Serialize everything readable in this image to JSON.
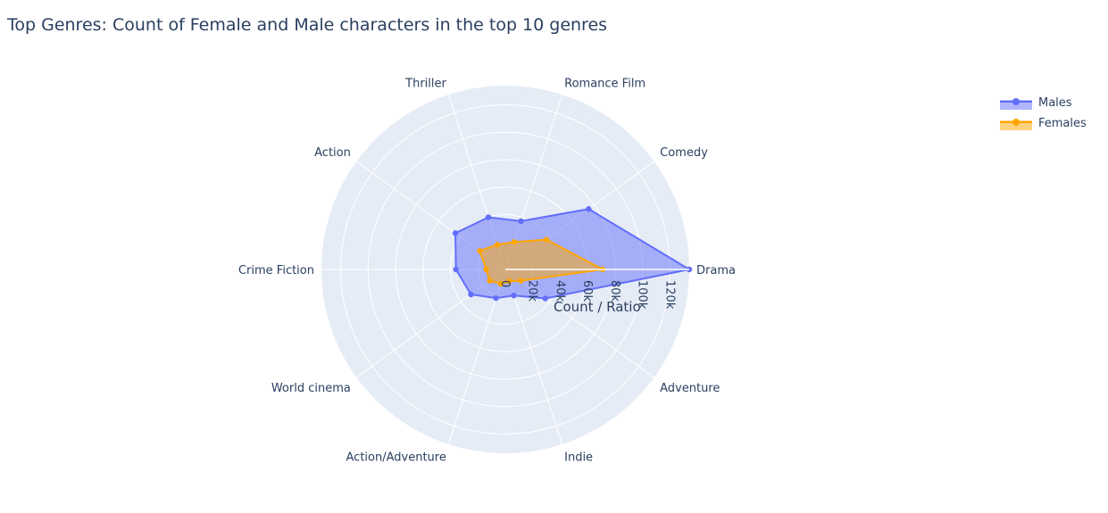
{
  "title": "Top Genres: Count of Female and Male characters in the top 10 genres",
  "colors": {
    "background": "#e5ecf6",
    "grid": "#ffffff",
    "males_line": "#636efa",
    "males_fill": "rgba(99,110,250,0.5)",
    "females_line": "#ffa500",
    "females_fill": "rgba(255,165,0,0.5)"
  },
  "chart_data": {
    "type": "radar",
    "categories": [
      "Drama",
      "Comedy",
      "Romance Film",
      "Thriller",
      "Action",
      "Crime Fiction",
      "World cinema",
      "Action/Adventure",
      "Indie",
      "Adventure"
    ],
    "series": [
      {
        "name": "Males",
        "values": [
          134000,
          75000,
          37000,
          40000,
          45000,
          36000,
          31000,
          22000,
          20000,
          36000
        ]
      },
      {
        "name": "Females",
        "values": [
          71000,
          37000,
          21000,
          19000,
          23000,
          14000,
          14000,
          11000,
          9000,
          14000
        ]
      }
    ],
    "radial_axis": {
      "title": "Count / Ratio",
      "range": [
        0,
        134000
      ],
      "ticks": [
        0,
        20000,
        40000,
        60000,
        80000,
        100000,
        120000
      ],
      "tick_labels": [
        "0",
        "20k",
        "40k",
        "60k",
        "80k",
        "100k",
        "120k"
      ]
    },
    "legend": {
      "placement": "top-right",
      "entries": [
        "Males",
        "Females"
      ]
    }
  }
}
